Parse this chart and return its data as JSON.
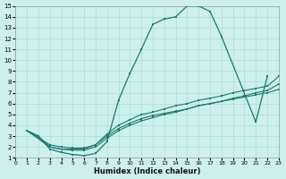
{
  "xlabel": "Humidex (Indice chaleur)",
  "bg_color": "#cdf0ec",
  "grid_color": "#aaddd8",
  "line_color": "#1a7a6e",
  "xlim": [
    0,
    23
  ],
  "ylim": [
    1,
    15
  ],
  "xticks": [
    0,
    1,
    2,
    3,
    4,
    5,
    6,
    7,
    8,
    9,
    10,
    11,
    12,
    13,
    14,
    15,
    16,
    17,
    18,
    19,
    20,
    21,
    22,
    23
  ],
  "yticks": [
    1,
    2,
    3,
    4,
    5,
    6,
    7,
    8,
    9,
    10,
    11,
    12,
    13,
    14,
    15
  ],
  "main_x": [
    1,
    2,
    3,
    4,
    5,
    6,
    7,
    8,
    9,
    10,
    11,
    12,
    13,
    14,
    15,
    16,
    17,
    18,
    21,
    22
  ],
  "main_y": [
    3.5,
    3.0,
    1.8,
    1.5,
    1.3,
    1.2,
    1.4,
    2.5,
    6.3,
    8.8,
    11.0,
    13.3,
    13.8,
    14.0,
    15.0,
    15.0,
    14.5,
    12.2,
    4.3,
    8.5
  ],
  "line1_x": [
    1,
    2,
    3,
    4,
    5,
    6,
    7,
    8,
    9,
    10,
    11,
    12,
    13,
    14,
    15,
    16,
    17,
    18,
    19,
    20,
    21,
    22,
    23
  ],
  "line1_y": [
    3.5,
    3.0,
    2.0,
    1.8,
    1.8,
    1.8,
    2.2,
    3.2,
    4.0,
    4.5,
    5.0,
    5.2,
    5.5,
    5.8,
    6.0,
    6.3,
    6.5,
    6.7,
    7.0,
    7.2,
    7.4,
    7.6,
    8.5
  ],
  "line2_x": [
    1,
    3,
    4,
    5,
    6,
    7,
    8,
    9,
    10,
    11,
    12,
    13,
    14,
    15,
    16,
    17,
    18,
    19,
    20,
    21,
    22,
    23
  ],
  "line2_y": [
    3.5,
    2.0,
    1.8,
    1.7,
    1.7,
    2.0,
    2.8,
    3.5,
    4.0,
    4.4,
    4.7,
    5.0,
    5.2,
    5.5,
    5.8,
    6.0,
    6.2,
    6.5,
    6.7,
    7.0,
    7.2,
    7.8
  ],
  "line3_x": [
    1,
    3,
    4,
    5,
    6,
    7,
    8,
    9,
    10,
    11,
    12,
    13,
    14,
    15,
    16,
    17,
    18,
    19,
    20,
    21,
    22,
    23
  ],
  "line3_y": [
    3.5,
    2.2,
    2.0,
    1.9,
    1.9,
    2.2,
    3.0,
    3.7,
    4.2,
    4.6,
    4.9,
    5.1,
    5.3,
    5.5,
    5.8,
    6.0,
    6.2,
    6.4,
    6.6,
    6.8,
    7.0,
    7.3
  ]
}
